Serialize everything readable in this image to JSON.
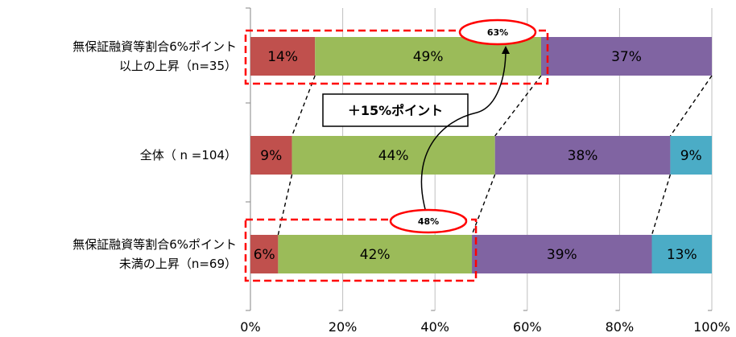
{
  "chart_data": {
    "type": "bar",
    "orientation": "horizontal",
    "stacked": true,
    "percent_stacked": true,
    "xlim": [
      0,
      100
    ],
    "x_ticks": [
      "0%",
      "20%",
      "40%",
      "60%",
      "80%",
      "100%"
    ],
    "grid": true,
    "categories": [
      {
        "lines": [
          "無保証融資等割合6%ポイント",
          "以上の上昇（n=35）"
        ]
      },
      {
        "lines": [
          "全体（ n =104）"
        ]
      },
      {
        "lines": [
          "無保証融資等割合6%ポイント",
          "未満の上昇（n=69）"
        ]
      }
    ],
    "series": [
      {
        "values": [
          14,
          9,
          6
        ],
        "labels": [
          "14%",
          "9%",
          "6%"
        ],
        "color": "#C0504D"
      },
      {
        "values": [
          49,
          44,
          42
        ],
        "labels": [
          "49%",
          "44%",
          "42%"
        ],
        "color": "#9BBB59"
      },
      {
        "values": [
          37,
          38,
          39
        ],
        "labels": [
          "37%",
          "38%",
          "39%"
        ],
        "color": "#8064A2"
      },
      {
        "values": [
          0,
          9,
          13
        ],
        "labels": [
          "",
          "9%",
          "13%"
        ],
        "color": "#4BACC6"
      }
    ],
    "annotations": {
      "bubble_top": "63%",
      "bubble_bottom": "48%",
      "increase_box": "＋15%ポイント",
      "highlight_color": "#FF0000"
    }
  }
}
